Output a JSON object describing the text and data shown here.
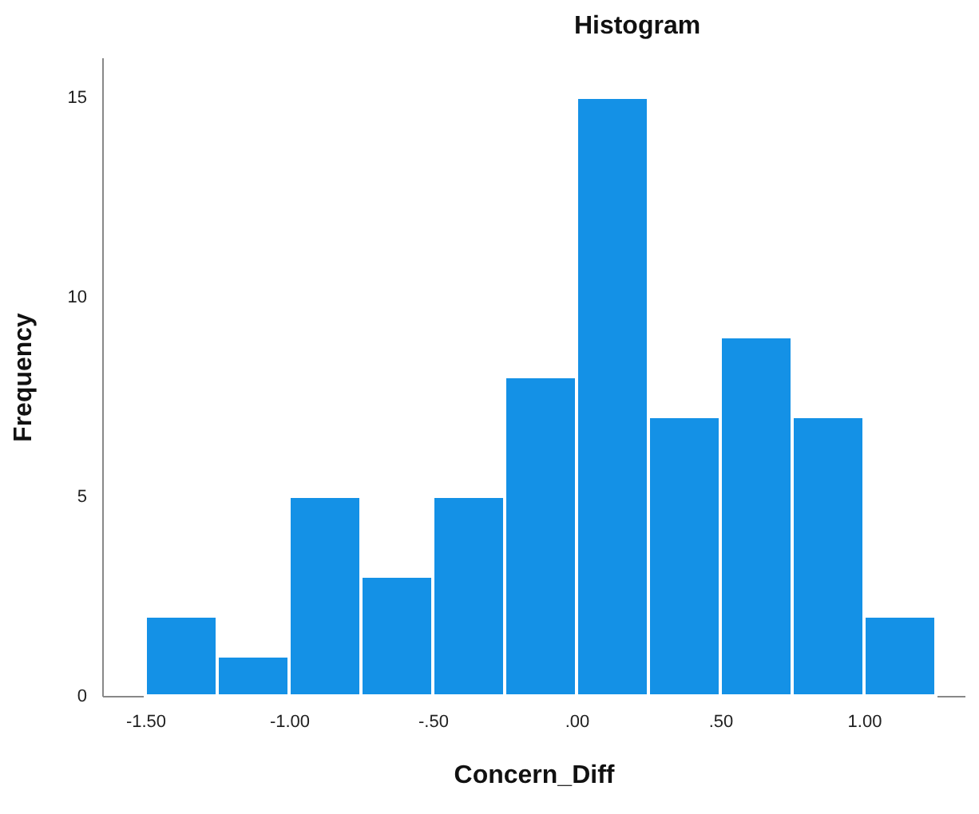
{
  "chart_data": {
    "type": "histogram",
    "title": "Histogram",
    "xlabel": "Concern_Diff",
    "ylabel": "Frequency",
    "bins": [
      -1.5,
      -1.25,
      -1.0,
      -0.75,
      -0.5,
      -0.25,
      0.0,
      0.25,
      0.5,
      0.75,
      1.0,
      1.25
    ],
    "values": [
      2,
      1,
      5,
      3,
      5,
      8,
      15,
      7,
      9,
      7,
      2
    ],
    "color": "#1491e6",
    "xlim": [
      -1.65,
      1.35
    ],
    "xticks": [
      {
        "value": -1.5,
        "label": "-1.50"
      },
      {
        "value": -1.0,
        "label": "-1.00"
      },
      {
        "value": -0.5,
        "label": "-.50"
      },
      {
        "value": 0,
        "label": ".00"
      },
      {
        "value": 0.5,
        "label": ".50"
      },
      {
        "value": 1.0,
        "label": "1.00"
      }
    ],
    "ylim": [
      0,
      16
    ],
    "yticks": [
      0,
      5,
      10,
      15
    ],
    "grid": false
  }
}
